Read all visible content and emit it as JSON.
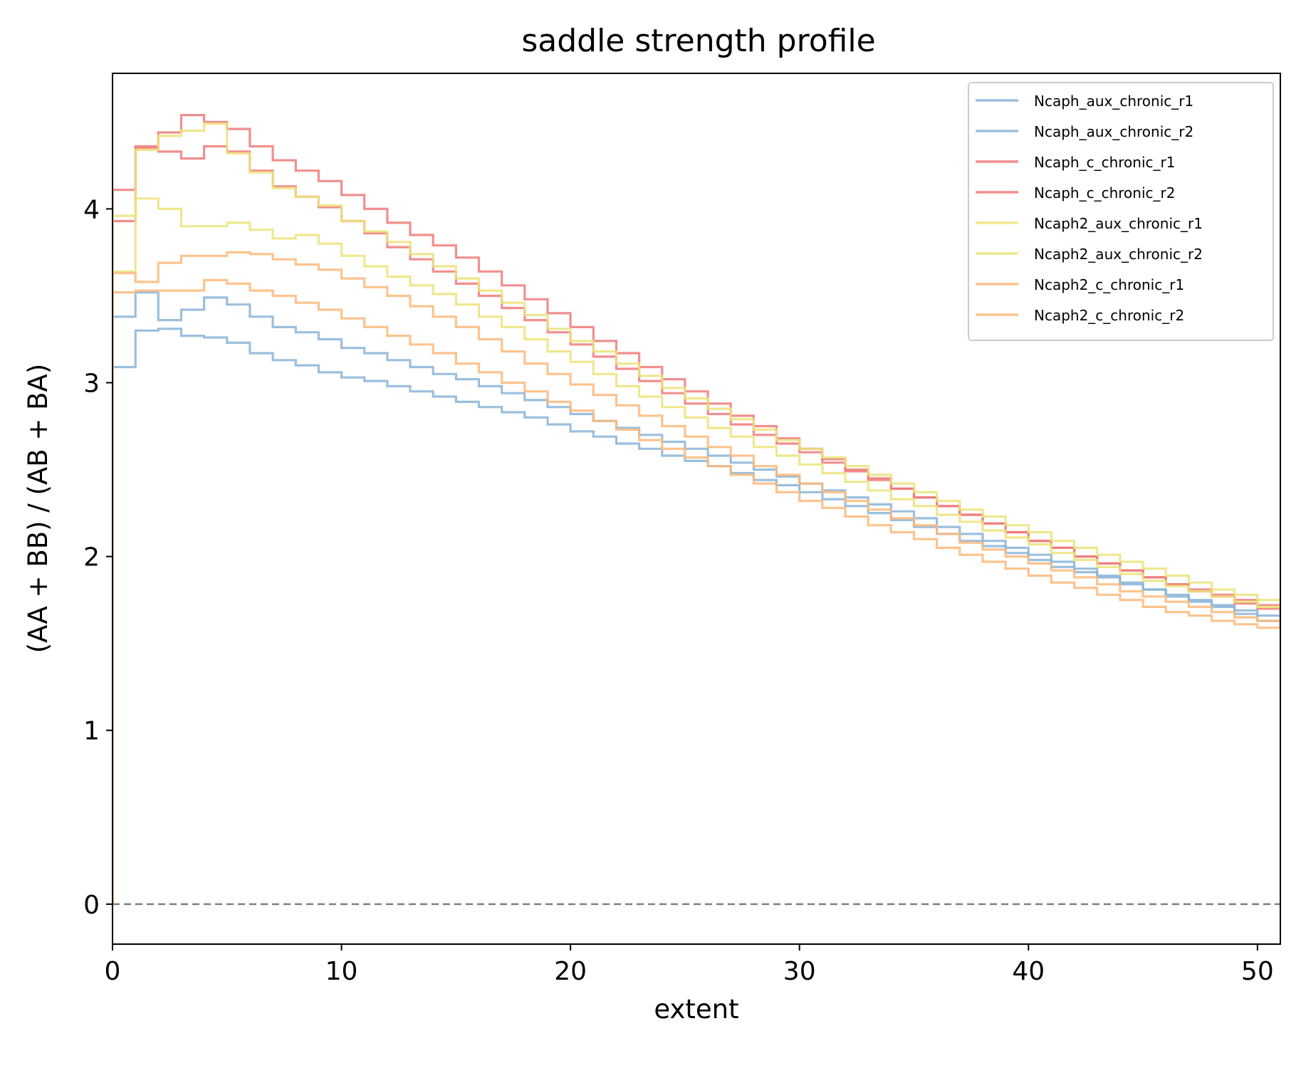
{
  "chart_data": {
    "type": "line",
    "step": true,
    "title": "saddle strength profile",
    "xlabel": "extent",
    "ylabel": "(AA + BB) / (AB + BA)",
    "xlim": [
      0,
      51
    ],
    "ylim": [
      -0.23,
      4.78
    ],
    "xticks": [
      "0",
      "10",
      "20",
      "30",
      "40",
      "50"
    ],
    "yticks": [
      "0",
      "1",
      "2",
      "3",
      "4"
    ],
    "grid": false,
    "legend_position": "top-right",
    "reference_line": {
      "y": 0,
      "style": "dashed",
      "color": "#808080"
    },
    "x": [
      0,
      1,
      2,
      3,
      4,
      5,
      6,
      7,
      8,
      9,
      10,
      11,
      12,
      13,
      14,
      15,
      16,
      17,
      18,
      19,
      20,
      21,
      22,
      23,
      24,
      25,
      26,
      27,
      28,
      29,
      30,
      31,
      32,
      33,
      34,
      35,
      36,
      37,
      38,
      39,
      40,
      41,
      42,
      43,
      44,
      45,
      46,
      47,
      48,
      49,
      50,
      51
    ],
    "series": [
      {
        "name": "Ncaph_aux_chronic_r1",
        "color": "#8ab4d8",
        "values": [
          3.09,
          3.3,
          3.31,
          3.27,
          3.26,
          3.23,
          3.17,
          3.13,
          3.1,
          3.06,
          3.03,
          3.01,
          2.98,
          2.95,
          2.92,
          2.89,
          2.86,
          2.83,
          2.8,
          2.76,
          2.72,
          2.69,
          2.65,
          2.62,
          2.58,
          2.55,
          2.52,
          2.48,
          2.44,
          2.41,
          2.37,
          2.33,
          2.29,
          2.25,
          2.21,
          2.17,
          2.13,
          2.09,
          2.06,
          2.02,
          1.98,
          1.94,
          1.91,
          1.88,
          1.84,
          1.81,
          1.78,
          1.75,
          1.72,
          1.69,
          1.66,
          1.64
        ]
      },
      {
        "name": "Ncaph_aux_chronic_r2",
        "color": "#8ab4d8",
        "values": [
          3.38,
          3.52,
          3.36,
          3.42,
          3.49,
          3.45,
          3.38,
          3.32,
          3.29,
          3.25,
          3.2,
          3.17,
          3.13,
          3.09,
          3.05,
          3.02,
          2.98,
          2.94,
          2.9,
          2.86,
          2.82,
          2.78,
          2.74,
          2.7,
          2.66,
          2.62,
          2.58,
          2.54,
          2.5,
          2.46,
          2.42,
          2.38,
          2.34,
          2.3,
          2.26,
          2.22,
          2.17,
          2.13,
          2.09,
          2.05,
          2.01,
          1.97,
          1.93,
          1.89,
          1.85,
          1.81,
          1.77,
          1.74,
          1.71,
          1.67,
          1.63,
          1.6
        ]
      },
      {
        "name": "Ncaph_c_chronic_r1",
        "color": "#ef7b7b",
        "values": [
          4.11,
          4.36,
          4.33,
          4.29,
          4.36,
          4.33,
          4.22,
          4.13,
          4.07,
          4.01,
          3.93,
          3.86,
          3.78,
          3.71,
          3.64,
          3.57,
          3.5,
          3.43,
          3.36,
          3.29,
          3.22,
          3.15,
          3.08,
          3.01,
          2.94,
          2.88,
          2.82,
          2.76,
          2.7,
          2.65,
          2.6,
          2.54,
          2.49,
          2.44,
          2.39,
          2.34,
          2.29,
          2.24,
          2.19,
          2.14,
          2.09,
          2.05,
          2.0,
          1.96,
          1.92,
          1.88,
          1.84,
          1.81,
          1.78,
          1.75,
          1.72,
          1.69
        ]
      },
      {
        "name": "Ncaph_c_chronic_r2",
        "color": "#ef7b7b",
        "values": [
          3.93,
          4.35,
          4.44,
          4.54,
          4.5,
          4.46,
          4.36,
          4.28,
          4.22,
          4.16,
          4.08,
          4.0,
          3.92,
          3.85,
          3.79,
          3.72,
          3.64,
          3.56,
          3.48,
          3.4,
          3.32,
          3.24,
          3.17,
          3.09,
          3.02,
          2.95,
          2.88,
          2.81,
          2.75,
          2.68,
          2.62,
          2.56,
          2.5,
          2.45,
          2.39,
          2.34,
          2.29,
          2.24,
          2.19,
          2.14,
          2.09,
          2.05,
          2.0,
          1.96,
          1.92,
          1.88,
          1.84,
          1.8,
          1.77,
          1.73,
          1.7,
          1.67
        ]
      },
      {
        "name": "Ncaph2_aux_chronic_r1",
        "color": "#ece37a",
        "values": [
          3.96,
          4.06,
          4.0,
          3.9,
          3.9,
          3.92,
          3.88,
          3.83,
          3.85,
          3.8,
          3.73,
          3.67,
          3.61,
          3.56,
          3.51,
          3.45,
          3.38,
          3.32,
          3.25,
          3.18,
          3.12,
          3.05,
          2.98,
          2.92,
          2.86,
          2.8,
          2.74,
          2.69,
          2.63,
          2.58,
          2.53,
          2.48,
          2.43,
          2.38,
          2.33,
          2.29,
          2.24,
          2.2,
          2.15,
          2.11,
          2.07,
          2.02,
          1.98,
          1.94,
          1.9,
          1.86,
          1.83,
          1.8,
          1.77,
          1.74,
          1.71,
          1.69
        ]
      },
      {
        "name": "Ncaph2_aux_chronic_r2",
        "color": "#ece37a",
        "values": [
          3.64,
          4.34,
          4.42,
          4.45,
          4.49,
          4.32,
          4.21,
          4.12,
          4.07,
          4.02,
          3.93,
          3.87,
          3.81,
          3.74,
          3.67,
          3.6,
          3.53,
          3.46,
          3.39,
          3.31,
          3.24,
          3.18,
          3.11,
          3.04,
          2.97,
          2.91,
          2.85,
          2.79,
          2.73,
          2.67,
          2.62,
          2.57,
          2.52,
          2.47,
          2.42,
          2.37,
          2.32,
          2.27,
          2.23,
          2.18,
          2.14,
          2.09,
          2.05,
          2.01,
          1.97,
          1.93,
          1.89,
          1.85,
          1.81,
          1.78,
          1.75,
          1.72
        ]
      },
      {
        "name": "Ncaph2_c_chronic_r1",
        "color": "#fdb97a",
        "values": [
          3.52,
          3.53,
          3.53,
          3.53,
          3.59,
          3.57,
          3.53,
          3.5,
          3.46,
          3.42,
          3.37,
          3.32,
          3.27,
          3.22,
          3.17,
          3.11,
          3.06,
          3.0,
          2.95,
          2.89,
          2.84,
          2.78,
          2.73,
          2.67,
          2.62,
          2.57,
          2.52,
          2.47,
          2.42,
          2.37,
          2.32,
          2.28,
          2.23,
          2.18,
          2.14,
          2.1,
          2.05,
          2.01,
          1.97,
          1.93,
          1.89,
          1.85,
          1.82,
          1.78,
          1.75,
          1.71,
          1.68,
          1.66,
          1.63,
          1.61,
          1.59,
          1.58
        ]
      },
      {
        "name": "Ncaph2_c_chronic_r2",
        "color": "#fdb97a",
        "values": [
          3.63,
          3.58,
          3.69,
          3.73,
          3.73,
          3.75,
          3.74,
          3.71,
          3.68,
          3.65,
          3.6,
          3.55,
          3.5,
          3.44,
          3.38,
          3.32,
          3.25,
          3.18,
          3.11,
          3.05,
          2.99,
          2.93,
          2.87,
          2.81,
          2.75,
          2.69,
          2.63,
          2.58,
          2.52,
          2.47,
          2.42,
          2.37,
          2.32,
          2.27,
          2.22,
          2.18,
          2.13,
          2.08,
          2.04,
          2.0,
          1.96,
          1.92,
          1.88,
          1.84,
          1.8,
          1.77,
          1.74,
          1.71,
          1.68,
          1.65,
          1.63,
          1.61
        ]
      }
    ]
  }
}
